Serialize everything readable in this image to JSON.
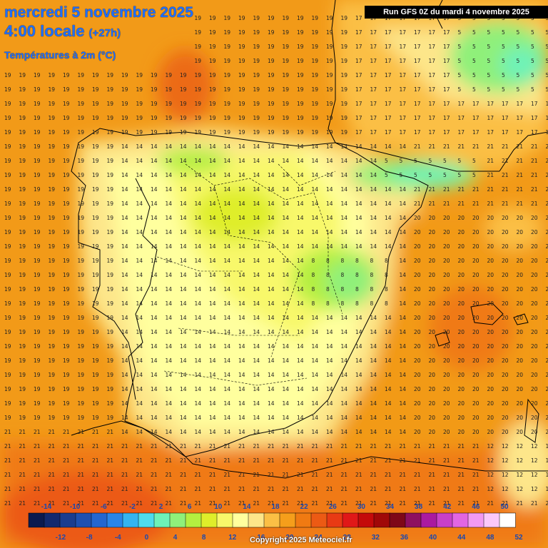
{
  "title": {
    "date": "mercredi 5 novembre 2025",
    "time": "4:00 locale",
    "offset": "(+27h)",
    "variable": "Températures à 2m (°C)"
  },
  "run_label": "Run GFS 0Z du mardi 4 novembre 2025",
  "copyright": "Copyright 2025 Meteociel.fr",
  "colorbar": {
    "top_labels": [
      "-14",
      "-10",
      "-6",
      "-2",
      "2",
      "6",
      "10",
      "14",
      "18",
      "22",
      "26",
      "30",
      "34",
      "38",
      "42",
      "46",
      "50"
    ],
    "bottom_labels": [
      "-12",
      "-8",
      "-4",
      "0",
      "4",
      "8",
      "12",
      "16",
      "20",
      "24",
      "28",
      "32",
      "36",
      "40",
      "44",
      "48",
      "52"
    ],
    "colors": [
      "#0b1a4f",
      "#12296e",
      "#1a3d8f",
      "#1e50b0",
      "#2366cf",
      "#2a85e8",
      "#35b4f0",
      "#4fdcec",
      "#6ef2b8",
      "#8ff07a",
      "#b4ef40",
      "#dfee2a",
      "#f8f86a",
      "#ffff9e",
      "#fde68a",
      "#fbbf45",
      "#f59e1b",
      "#f07a12",
      "#ec5a14",
      "#e83a14",
      "#e01818",
      "#c40a0a",
      "#a00808",
      "#7e0818",
      "#8e1060",
      "#aa1aa0",
      "#c840c8",
      "#e266e2",
      "#f29af2",
      "#fbc8fb",
      "#ffffff"
    ]
  },
  "map": {
    "regions": {
      "france_north": "17",
      "france_south": "15",
      "iberia_center": "14",
      "iberia_cold_core": "8",
      "pyrenees": "5",
      "alps": "5",
      "atlantic": "19",
      "med": "20",
      "africa_coast": "21",
      "italy_cold": "12"
    }
  }
}
